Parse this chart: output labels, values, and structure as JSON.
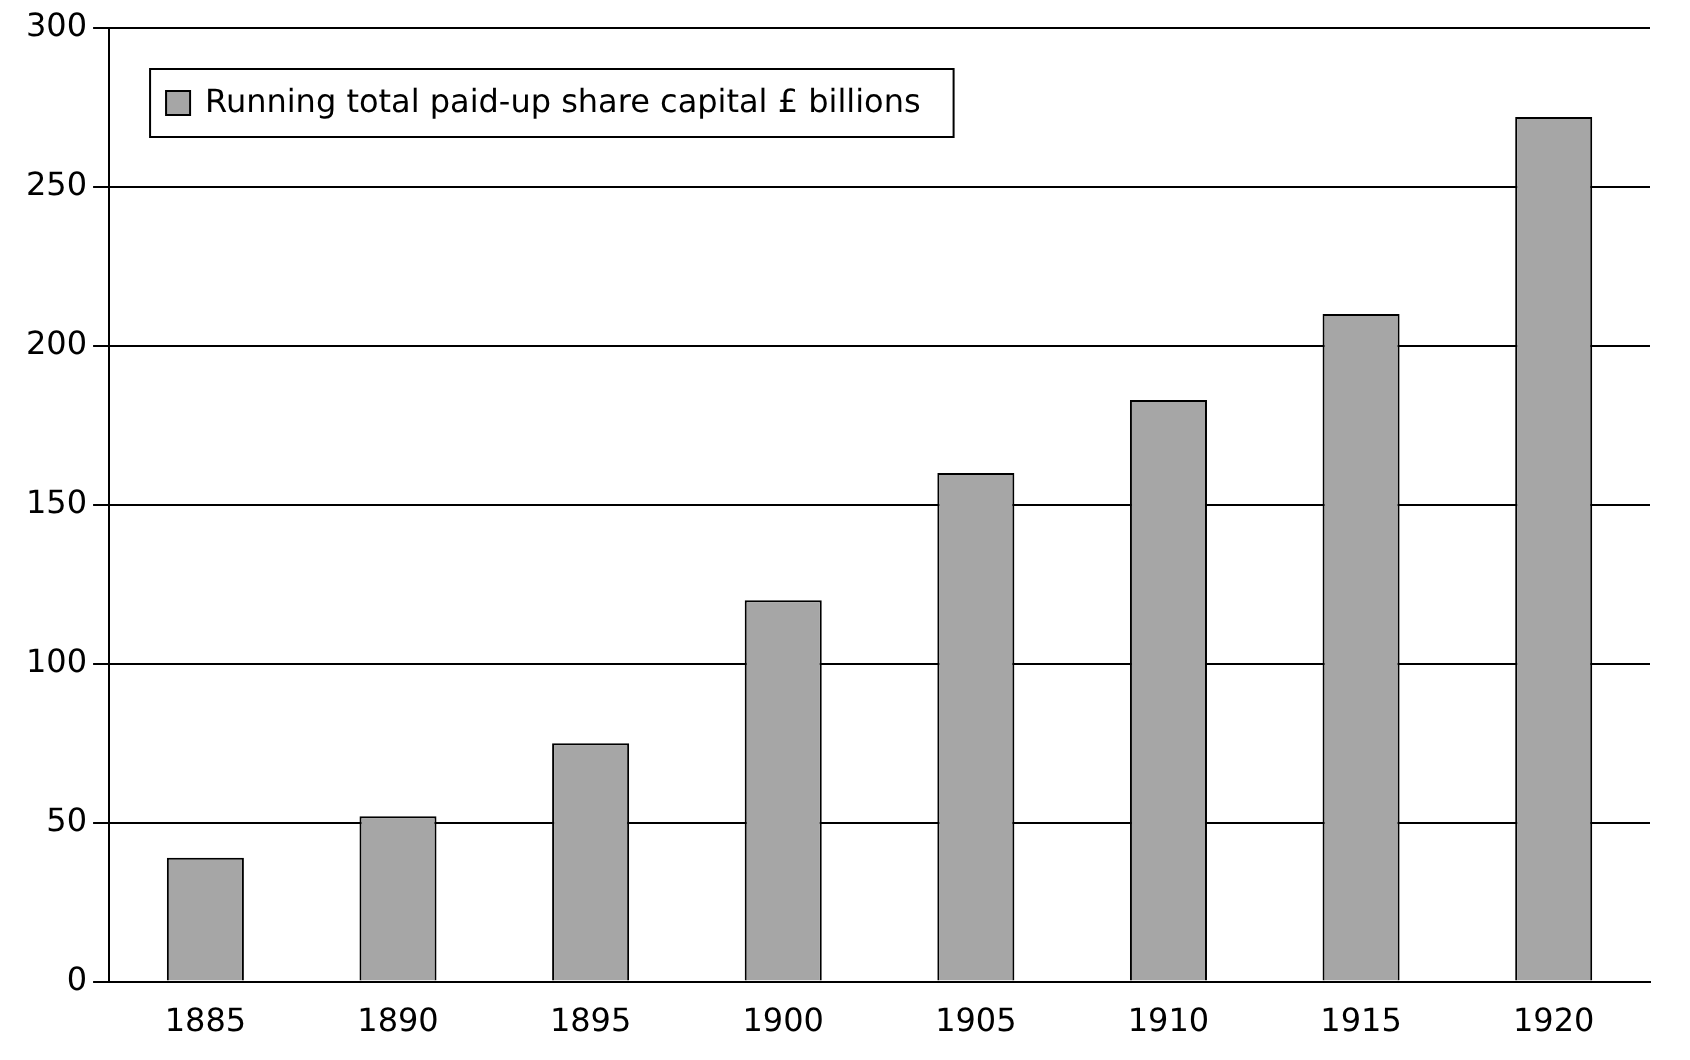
{
  "chart_data": {
    "type": "bar",
    "categories": [
      "1885",
      "1890",
      "1895",
      "1900",
      "1905",
      "1910",
      "1915",
      "1920"
    ],
    "series": [
      {
        "name": "Running total paid-up share capital £ billions",
        "color": "#a6a6a6",
        "values": [
          39,
          52,
          75,
          120,
          160,
          183,
          210,
          272
        ]
      }
    ],
    "ylim": [
      0,
      300
    ],
    "yticks": [
      0,
      50,
      100,
      150,
      200,
      250,
      300
    ],
    "grid": "y",
    "legend": "top left"
  }
}
